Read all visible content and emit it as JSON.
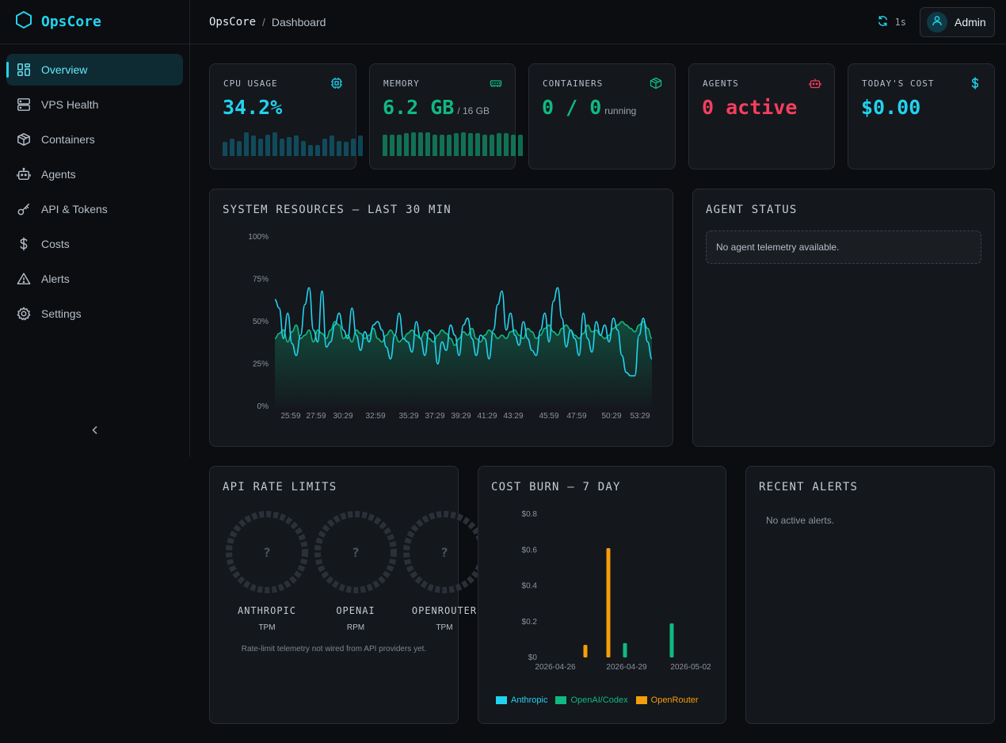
{
  "app": {
    "name": "OpsCore"
  },
  "sidebar": {
    "items": [
      {
        "label": "Overview",
        "icon": "dashboard-icon",
        "active": true
      },
      {
        "label": "VPS Health",
        "icon": "server-icon"
      },
      {
        "label": "Containers",
        "icon": "box-icon"
      },
      {
        "label": "Agents",
        "icon": "bot-icon"
      },
      {
        "label": "API & Tokens",
        "icon": "key-icon"
      },
      {
        "label": "Costs",
        "icon": "dollar-icon"
      },
      {
        "label": "Alerts",
        "icon": "alert-icon"
      },
      {
        "label": "Settings",
        "icon": "gear-icon"
      }
    ],
    "collapse_icon": "chevron-left-icon"
  },
  "header": {
    "breadcrumb": {
      "app": "OpsCore",
      "separator": "/",
      "page": "Dashboard"
    },
    "refresh_interval": "1s",
    "user": "Admin"
  },
  "stats": {
    "cpu": {
      "title": "CPU USAGE",
      "value": "34.2%",
      "color": "#22d3ee",
      "spark": [
        0.55,
        0.7,
        0.6,
        0.95,
        0.8,
        0.7,
        0.85,
        0.95,
        0.7,
        0.75,
        0.8,
        0.6,
        0.45,
        0.45,
        0.7,
        0.8,
        0.6,
        0.55,
        0.7,
        0.8
      ]
    },
    "memory": {
      "title": "MEMORY",
      "value": "6.2 GB",
      "sub": "/ 16 GB",
      "color": "#10b981",
      "spark": [
        0.85,
        0.85,
        0.85,
        0.9,
        0.95,
        0.95,
        0.95,
        0.85,
        0.85,
        0.85,
        0.9,
        0.95,
        0.9,
        0.9,
        0.85,
        0.85,
        0.9,
        0.9,
        0.85,
        0.85
      ]
    },
    "containers": {
      "title": "CONTAINERS",
      "value": "0 / 0",
      "sub": "running",
      "color": "#10b981"
    },
    "agents": {
      "title": "AGENTS",
      "value": "0 active",
      "color": "#f43f5e"
    },
    "cost": {
      "title": "TODAY'S COST",
      "value": "$0.00",
      "color": "#22d3ee"
    }
  },
  "system_resources": {
    "title": "SYSTEM RESOURCES — LAST 30 MIN"
  },
  "agent_status": {
    "title": "AGENT STATUS",
    "empty": "No agent telemetry available."
  },
  "api_rate_limits": {
    "title": "API RATE LIMITS",
    "gauges": [
      {
        "name": "ANTHROPIC",
        "unit": "TPM",
        "value": "?"
      },
      {
        "name": "OPENAI",
        "unit": "RPM",
        "value": "?"
      },
      {
        "name": "OPENROUTER",
        "unit": "TPM",
        "value": "?"
      }
    ],
    "note": "Rate-limit telemetry not wired from API providers yet."
  },
  "cost_burn": {
    "title": "COST BURN — 7 DAY",
    "legend": [
      {
        "name": "Anthropic",
        "color": "#22d3ee"
      },
      {
        "name": "OpenAI/Codex",
        "color": "#10b981"
      },
      {
        "name": "OpenRouter",
        "color": "#f59e0b"
      }
    ]
  },
  "recent_alerts": {
    "title": "RECENT ALERTS",
    "empty": "No active alerts."
  },
  "chart_data": [
    {
      "type": "line",
      "title": "SYSTEM RESOURCES — LAST 30 MIN",
      "ylim": [
        0,
        100
      ],
      "y_ticks": [
        "0%",
        "25%",
        "50%",
        "75%",
        "100%"
      ],
      "x_ticks": [
        "25:59",
        "27:59",
        "30:29",
        "32:59",
        "35:29",
        "37:29",
        "39:29",
        "41:29",
        "43:29",
        "45:59",
        "47:59",
        "50:29",
        "53:29"
      ],
      "series": [
        {
          "color": "#22d3ee",
          "values": [
            63,
            58,
            40,
            55,
            37,
            30,
            42,
            60,
            70,
            45,
            38,
            68,
            35,
            38,
            48,
            55,
            45,
            40,
            58,
            42,
            33,
            44,
            38,
            48,
            50,
            45,
            35,
            28,
            42,
            55,
            40,
            38,
            32,
            50,
            40,
            30,
            45,
            43,
            25,
            38,
            33,
            48,
            42,
            30,
            48,
            52,
            40,
            30,
            42,
            40,
            28,
            45,
            60,
            68,
            45,
            55,
            42,
            36,
            50,
            40,
            33,
            30,
            45,
            55,
            38,
            62,
            70,
            52,
            35,
            45,
            40,
            30,
            55,
            40,
            32,
            50,
            42,
            48,
            38,
            52,
            45,
            30,
            20,
            18,
            18,
            42,
            52,
            38,
            28
          ]
        },
        {
          "color": "#10b981",
          "values": [
            40,
            43,
            45,
            38,
            44,
            48,
            40,
            42,
            45,
            38,
            45,
            43,
            40,
            45,
            50,
            48,
            40,
            42,
            38,
            45,
            43,
            40,
            42,
            46,
            40,
            38,
            42,
            45,
            42,
            38,
            40,
            43,
            45,
            42,
            40,
            44,
            40,
            38,
            42,
            45,
            43,
            40,
            36,
            40,
            44,
            42,
            46,
            40,
            38,
            42,
            45,
            43,
            40,
            42,
            40,
            44,
            45,
            42,
            40,
            46,
            44,
            40,
            42,
            46,
            48,
            44,
            42,
            46,
            48,
            45,
            42,
            40,
            43,
            48,
            44,
            45,
            42,
            40,
            42,
            46,
            48,
            50,
            48,
            46,
            44,
            48,
            50,
            46,
            40
          ]
        }
      ]
    },
    {
      "type": "bar",
      "title": "COST BURN — 7 DAY",
      "ylim": [
        0,
        0.8
      ],
      "y_ticks": [
        "$0",
        "$0.2",
        "$0.4",
        "$0.6",
        "$0.8"
      ],
      "x_ticks": [
        "2026-04-26",
        "2026-04-29",
        "2026-05-02"
      ],
      "series": [
        {
          "name": "Anthropic",
          "color": "#22d3ee",
          "values": [
            0,
            0,
            0,
            0,
            0,
            0,
            0
          ]
        },
        {
          "name": "OpenAI/Codex",
          "color": "#10b981",
          "values": [
            0,
            0,
            0,
            0.08,
            0,
            0,
            0.19
          ]
        },
        {
          "name": "OpenRouter",
          "color": "#f59e0b",
          "values": [
            0,
            0.07,
            0.61,
            0,
            0,
            0,
            0
          ]
        }
      ]
    }
  ]
}
